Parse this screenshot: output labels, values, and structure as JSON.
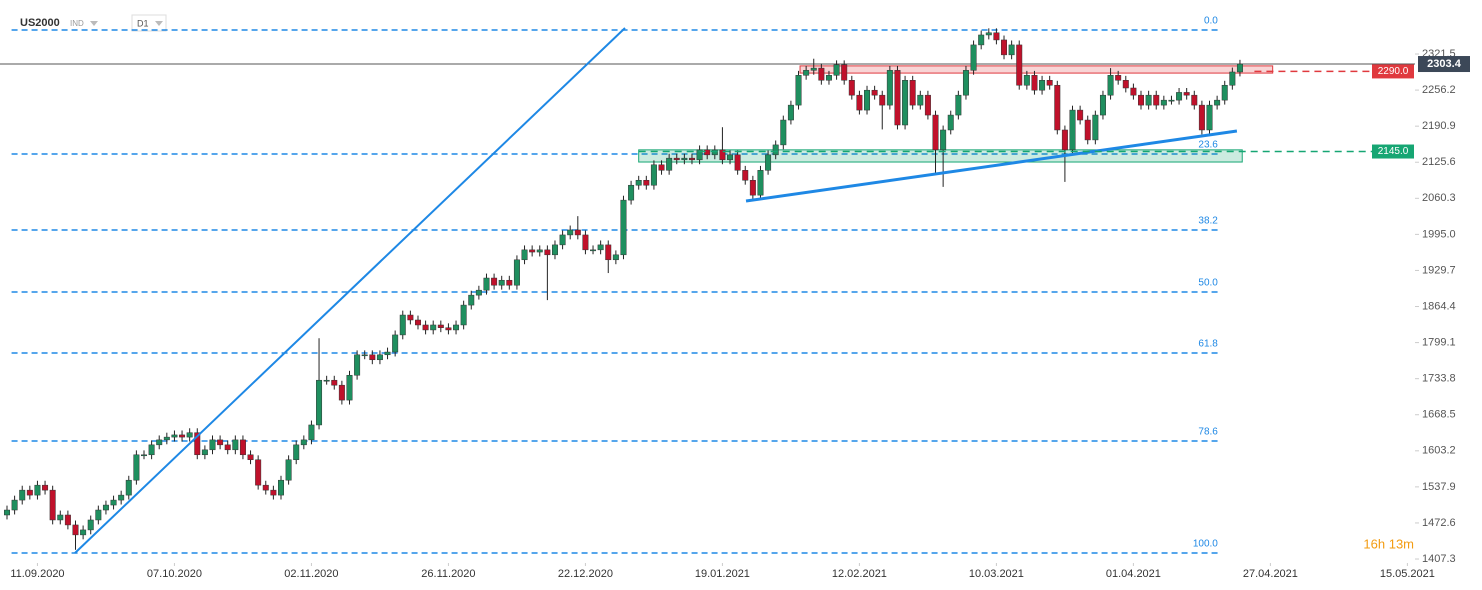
{
  "chart_data": {
    "type": "candlestick",
    "symbol": "US2000",
    "instrument_type": "IND",
    "timeframe": "D1",
    "colors": {
      "up": "#1f8f5f",
      "down": "#c0112b"
    },
    "open": [
      1487,
      1496,
      1514,
      1532,
      1523,
      1541,
      1532,
      1478,
      1487,
      1469,
      1451,
      1460,
      1478,
      1496,
      1505,
      1514,
      1523,
      1550,
      1596,
      1596,
      1614,
      1623,
      1628,
      1632,
      1628,
      1636,
      1596,
      1605,
      1623,
      1614,
      1605,
      1623,
      1596,
      1587,
      1541,
      1532,
      1523,
      1550,
      1587,
      1614,
      1623,
      1650,
      1731,
      1731,
      1722,
      1695,
      1740,
      1777,
      1777,
      1768,
      1777,
      1782,
      1813,
      1849,
      1840,
      1831,
      1822,
      1831,
      1826,
      1822,
      1831,
      1867,
      1885,
      1894,
      1916,
      1903,
      1912,
      1903,
      1949,
      1967,
      1963,
      1967,
      1958,
      1976,
      1994,
      2003,
      1994,
      1967,
      1967,
      1976,
      1949,
      1958,
      2057,
      2084,
      2093,
      2084,
      2121,
      2111,
      2133,
      2130,
      2133,
      2130,
      2148,
      2139,
      2148,
      2130,
      2139,
      2111,
      2093,
      2066,
      2111,
      2139,
      2157,
      2202,
      2229,
      2283,
      2292,
      2296,
      2274,
      2283,
      2302,
      2274,
      2247,
      2220,
      2256,
      2247,
      2229,
      2292,
      2193,
      2274,
      2229,
      2247,
      2211,
      2148,
      2184,
      2211,
      2247,
      2292,
      2338,
      2356,
      2360,
      2347,
      2320,
      2338,
      2265,
      2283,
      2256,
      2274,
      2265,
      2184,
      2148,
      2220,
      2202,
      2166,
      2211,
      2247,
      2283,
      2274,
      2260,
      2247,
      2229,
      2247,
      2229,
      2238,
      2238,
      2252,
      2247,
      2229,
      2184,
      2229,
      2238,
      2265,
      2289
    ],
    "high": [
      1504,
      1522,
      1540,
      1540,
      1549,
      1549,
      1540,
      1495,
      1495,
      1477,
      1468,
      1486,
      1504,
      1513,
      1522,
      1531,
      1558,
      1604,
      1604,
      1622,
      1631,
      1636,
      1640,
      1640,
      1644,
      1644,
      1613,
      1631,
      1631,
      1622,
      1631,
      1631,
      1604,
      1595,
      1549,
      1540,
      1558,
      1595,
      1622,
      1631,
      1658,
      1807,
      1739,
      1739,
      1730,
      1748,
      1785,
      1785,
      1785,
      1785,
      1790,
      1821,
      1857,
      1857,
      1848,
      1839,
      1839,
      1839,
      1834,
      1839,
      1875,
      1893,
      1902,
      1924,
      1924,
      1920,
      1920,
      1957,
      1975,
      1975,
      1975,
      1975,
      1984,
      2002,
      2011,
      2028,
      2002,
      1975,
      1984,
      1984,
      1966,
      2065,
      2092,
      2101,
      2101,
      2129,
      2129,
      2141,
      2141,
      2141,
      2141,
      2156,
      2156,
      2156,
      2189,
      2147,
      2147,
      2119,
      2101,
      2119,
      2147,
      2165,
      2210,
      2237,
      2291,
      2300,
      2313,
      2304,
      2291,
      2310,
      2310,
      2282,
      2255,
      2264,
      2264,
      2255,
      2300,
      2300,
      2282,
      2282,
      2255,
      2255,
      2219,
      2192,
      2219,
      2255,
      2300,
      2346,
      2364,
      2368,
      2368,
      2355,
      2346,
      2346,
      2291,
      2291,
      2282,
      2282,
      2273,
      2192,
      2228,
      2228,
      2210,
      2219,
      2255,
      2296,
      2291,
      2282,
      2268,
      2255,
      2255,
      2255,
      2246,
      2246,
      2260,
      2260,
      2255,
      2237,
      2237,
      2246,
      2273,
      2297,
      2311
    ],
    "low": [
      1479,
      1488,
      1506,
      1515,
      1515,
      1524,
      1470,
      1470,
      1461,
      1424,
      1443,
      1452,
      1470,
      1488,
      1497,
      1506,
      1515,
      1542,
      1588,
      1588,
      1606,
      1615,
      1620,
      1620,
      1620,
      1588,
      1588,
      1597,
      1606,
      1597,
      1597,
      1588,
      1579,
      1533,
      1524,
      1515,
      1515,
      1542,
      1579,
      1606,
      1615,
      1642,
      1723,
      1714,
      1687,
      1687,
      1732,
      1769,
      1760,
      1760,
      1769,
      1774,
      1805,
      1832,
      1823,
      1814,
      1814,
      1818,
      1814,
      1814,
      1823,
      1859,
      1877,
      1886,
      1895,
      1895,
      1895,
      1895,
      1941,
      1955,
      1955,
      1876,
      1950,
      1968,
      1986,
      1986,
      1959,
      1959,
      1959,
      1925,
      1941,
      1950,
      2049,
      2076,
      2076,
      2076,
      2103,
      2103,
      2122,
      2122,
      2122,
      2122,
      2131,
      2131,
      2122,
      2122,
      2103,
      2085,
      2058,
      2058,
      2103,
      2131,
      2149,
      2194,
      2221,
      2275,
      2284,
      2266,
      2266,
      2275,
      2266,
      2239,
      2212,
      2212,
      2239,
      2185,
      2221,
      2185,
      2185,
      2221,
      2221,
      2203,
      2103,
      2081,
      2176,
      2203,
      2239,
      2284,
      2330,
      2348,
      2339,
      2312,
      2312,
      2257,
      2257,
      2248,
      2248,
      2257,
      2176,
      2090,
      2140,
      2194,
      2158,
      2158,
      2203,
      2239,
      2266,
      2252,
      2239,
      2221,
      2221,
      2221,
      2221,
      2230,
      2230,
      2239,
      2221,
      2176,
      2176,
      2221,
      2230,
      2257,
      2281
    ],
    "close": [
      1496,
      1514,
      1532,
      1523,
      1541,
      1532,
      1478,
      1487,
      1469,
      1451,
      1460,
      1478,
      1496,
      1505,
      1514,
      1523,
      1550,
      1596,
      1596,
      1614,
      1623,
      1628,
      1632,
      1628,
      1636,
      1596,
      1605,
      1623,
      1614,
      1605,
      1623,
      1596,
      1587,
      1541,
      1532,
      1523,
      1550,
      1587,
      1614,
      1623,
      1650,
      1731,
      1731,
      1722,
      1695,
      1740,
      1777,
      1777,
      1768,
      1777,
      1782,
      1813,
      1849,
      1840,
      1831,
      1822,
      1831,
      1826,
      1822,
      1831,
      1867,
      1885,
      1894,
      1916,
      1903,
      1912,
      1903,
      1949,
      1967,
      1963,
      1967,
      1958,
      1976,
      1994,
      2003,
      1994,
      1967,
      1967,
      1976,
      1949,
      1958,
      2057,
      2084,
      2093,
      2084,
      2121,
      2111,
      2133,
      2130,
      2133,
      2130,
      2148,
      2139,
      2148,
      2130,
      2139,
      2111,
      2093,
      2066,
      2111,
      2139,
      2157,
      2202,
      2229,
      2283,
      2292,
      2296,
      2274,
      2283,
      2302,
      2274,
      2247,
      2220,
      2256,
      2247,
      2229,
      2292,
      2193,
      2274,
      2229,
      2247,
      2211,
      2148,
      2184,
      2211,
      2247,
      2292,
      2338,
      2356,
      2360,
      2347,
      2320,
      2338,
      2265,
      2283,
      2256,
      2274,
      2265,
      2184,
      2148,
      2220,
      2202,
      2166,
      2211,
      2247,
      2283,
      2274,
      2260,
      2247,
      2229,
      2247,
      2229,
      2238,
      2238,
      2252,
      2247,
      2229,
      2184,
      2229,
      2238,
      2265,
      2289,
      2303.4
    ],
    "xlim": [
      -0.92,
      185
    ],
    "xticks": [
      {
        "value": 4,
        "label": "11.09.2020"
      },
      {
        "value": 22,
        "label": "07.10.2020"
      },
      {
        "value": 40,
        "label": "02.11.2020"
      },
      {
        "value": 58,
        "label": "26.11.2020"
      },
      {
        "value": 76,
        "label": "22.12.2020"
      },
      {
        "value": 94,
        "label": "19.01.2021"
      },
      {
        "value": 112,
        "label": "12.02.2021"
      },
      {
        "value": 130,
        "label": "10.03.2021"
      },
      {
        "value": 148,
        "label": "01.04.2021"
      },
      {
        "value": 166,
        "label": "27.04.2021"
      },
      {
        "value": 184,
        "label": "15.05.2021"
      }
    ],
    "ylim": [
      1400.1,
      2419.3
    ],
    "yticks": [
      2321.5,
      2256.2,
      2190.9,
      2125.6,
      2060.3,
      {
        "value": 1995,
        "label": "1995.0"
      },
      1929.7,
      1864.4,
      1799.1,
      1733.8,
      1668.5,
      1603.2,
      1537.9,
      1472.6,
      1407.3
    ],
    "last_price": 2303.4,
    "levels": [
      {
        "value": 2290,
        "label": "2290.0",
        "color": "#e0393e",
        "start": 163.9
      },
      {
        "value": 2145,
        "label": "2145.0",
        "color": "#16a673",
        "start": 83
      }
    ],
    "fibonacci": {
      "color": "#1e88e5",
      "start": 0.6,
      "end": 159.1,
      "levels": [
        {
          "label": "0.0",
          "price": 2365
        },
        {
          "label": "23.6",
          "price": 2140.5
        },
        {
          "label": "38.2",
          "price": 2002.9
        },
        {
          "label": "50.0",
          "price": 1890.7
        },
        {
          "label": "61.8",
          "price": 1780.3
        },
        {
          "label": "78.6",
          "price": 1621
        },
        {
          "label": "100.0",
          "price": 1418.2
        }
      ]
    },
    "zones": [
      {
        "start": 104.2,
        "end": 166.3,
        "low": 2287,
        "high": 2300,
        "color": "#e0393e"
      },
      {
        "start": 83,
        "end": 162.3,
        "low": 2126,
        "high": 2148,
        "color": "#16a673"
      }
    ],
    "trendlines": [
      {
        "x": [
          8.93,
          81.2
        ],
        "y": [
          1418.2,
          2368.6
        ],
        "color": "#1e88e5"
      },
      {
        "x": [
          97.1,
          161.6
        ],
        "y": [
          2055.4,
          2182.1
        ],
        "color": "#1e88e5"
      }
    ],
    "countdown": "16h 13m"
  }
}
